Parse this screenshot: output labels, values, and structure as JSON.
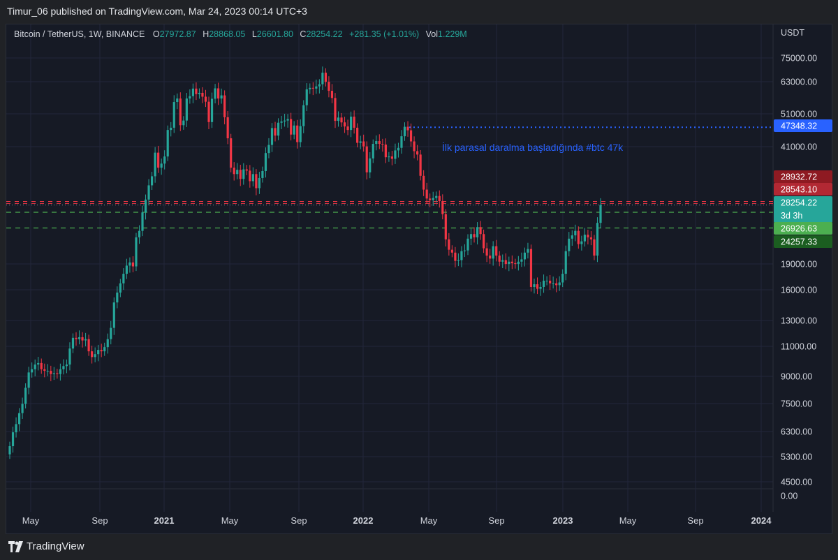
{
  "header": {
    "published": "Timur_06 published on TradingView.com, Mar 24, 2023 00:14 UTC+3"
  },
  "legend": {
    "symbol": "Bitcoin / TetherUS, 1W, BINANCE",
    "open_label": "O",
    "open": "27972.87",
    "high_label": "H",
    "high": "28868.05",
    "low_label": "L",
    "low": "26601.80",
    "close_label": "C",
    "close": "28254.22",
    "change": "+281.35 (+1.01%)",
    "vol_label": "Vol",
    "vol": "1.229M"
  },
  "currency": "USDT",
  "annotation": "İlk parasal daralma başladığında #btc 47k",
  "footer": {
    "brand": "TradingView"
  },
  "colors": {
    "up": "#26a69a",
    "down": "#f23645",
    "background": "#161a25",
    "annotation": "#2962ff"
  },
  "chart_data": {
    "type": "candlestick",
    "y_scale": "log",
    "y_ticks": [
      "75000.00",
      "63000.00",
      "51000.00",
      "41000.00",
      "19000.00",
      "16000.00",
      "13000.00",
      "11000.00",
      "9000.00",
      "7500.00",
      "6300.00",
      "5300.00",
      "4500.00",
      "0.00"
    ],
    "x_ticks": [
      "May",
      "Sep",
      "2021",
      "May",
      "Sep",
      "2022",
      "May",
      "Sep",
      "2023",
      "May",
      "Sep",
      "2024"
    ],
    "price_labels": [
      {
        "text": "47348.32",
        "color": "#2962ff"
      },
      {
        "text": "28932.72",
        "color": "#8e1a22"
      },
      {
        "text": "28543.10",
        "color": "#b22833"
      },
      {
        "text": "28254.22",
        "sub": "3d 3h",
        "color": "#26a69a"
      },
      {
        "text": "26926.63",
        "color": "#4caf50"
      },
      {
        "text": "24257.33",
        "color": "#1b5e20"
      }
    ],
    "levels": [
      {
        "value": 47348.32,
        "style": "dotted-blue"
      },
      {
        "value": 28932.72,
        "style": "dashed-red"
      },
      {
        "value": 28543.1,
        "style": "dashed-red"
      },
      {
        "value": 28254.22,
        "style": "dotted-gray"
      },
      {
        "value": 26926.63,
        "style": "dashed-green"
      },
      {
        "value": 24257.33,
        "style": "dashed-green"
      }
    ],
    "weekly_close": [
      5700,
      6250,
      6600,
      7100,
      7550,
      8400,
      9300,
      9500,
      9800,
      9900,
      9500,
      9400,
      9400,
      9200,
      9250,
      9200,
      9500,
      9700,
      9800,
      10900,
      11700,
      11600,
      11750,
      11500,
      11600,
      10700,
      10300,
      10500,
      10800,
      10700,
      11000,
      11600,
      12500,
      14800,
      15800,
      16800,
      17900,
      18900,
      19300,
      18800,
      22800,
      23800,
      26900,
      29300,
      32200,
      34200,
      40000,
      36200,
      37200,
      39000,
      46500,
      47200,
      56000,
      57300,
      48000,
      49500,
      57300,
      58200,
      61200,
      59000,
      59500,
      58000,
      56100,
      49000,
      57200,
      61300,
      57300,
      58500,
      50600,
      44000,
      36200,
      34700,
      35700,
      33600,
      35800,
      35500,
      33100,
      34700,
      31600,
      33800,
      35400,
      39900,
      42100,
      47100,
      44800,
      48800,
      49200,
      49500,
      50000,
      45100,
      47900,
      42900,
      47700,
      54800,
      60900,
      61500,
      61200,
      62100,
      63000,
      68000,
      64000,
      60300,
      57500,
      49400,
      50500,
      48900,
      47600,
      46500,
      50800,
      47200,
      42700,
      43100,
      41700,
      35100,
      38500,
      42400,
      43200,
      42400,
      42200,
      38800,
      39000,
      38400,
      40600,
      41300,
      44600,
      47500,
      46400,
      43100,
      40400,
      39500,
      34300,
      31300,
      29500,
      29200,
      29600,
      30000,
      29000,
      26600,
      22500,
      21000,
      20600,
      19500,
      19600,
      20800,
      20900,
      22600,
      23300,
      22800,
      24400,
      23300,
      21200,
      20200,
      19800,
      21500,
      20200,
      19400,
      19600,
      19100,
      19400,
      19200,
      19100,
      19400,
      19700,
      20600,
      21100,
      16400,
      16700,
      16200,
      16400,
      17100,
      17100,
      16800,
      16800,
      16600,
      16900,
      17900,
      20800,
      22600,
      23100,
      23800,
      21800,
      22200,
      23200,
      22800,
      22500,
      20200,
      25100,
      28254.22
    ],
    "last_close": 28254.22
  }
}
